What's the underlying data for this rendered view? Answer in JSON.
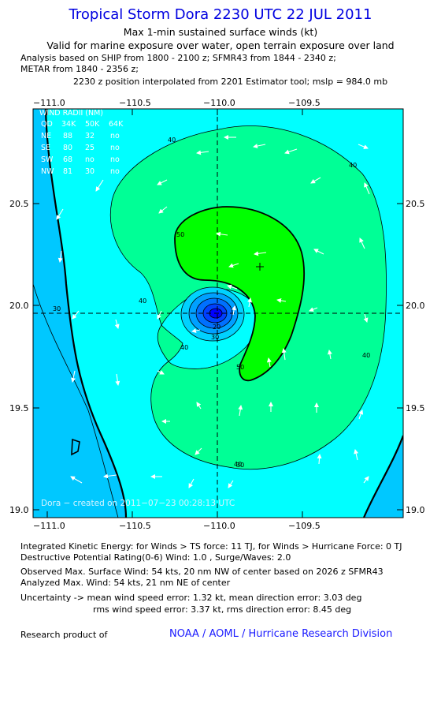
{
  "header": {
    "title": "Tropical Storm Dora 2230 UTC 22 JUL 2011",
    "subtitle": "Max 1-min sustained surface winds (kt)",
    "valid": "Valid for marine exposure over water, open terrain exposure over land",
    "analysis_1": "Analysis based on SHIP from 1800 - 2100 z; SFMR43 from 1844 - 2340 z;",
    "analysis_2": "METAR from 1840 - 2356 z;",
    "position": "2230 z position interpolated from 2201 Estimator tool; mslp = 984.0 mb"
  },
  "map": {
    "x_ticks": [
      "−111.0",
      "−110.5",
      "−110.0",
      "−109.5"
    ],
    "y_ticks": [
      "20.5",
      "20.0",
      "19.5",
      "19.0"
    ],
    "credit": "Dora − created on 2011−07−23 00:28:13 UTC",
    "contour_labels": [
      "40",
      "40",
      "50",
      "40",
      "30",
      "40",
      "30",
      "20",
      "50",
      "40",
      "40",
      "30"
    ],
    "wind_radii": {
      "title": "WIND RADII (NM)",
      "header": [
        "QD",
        "34K",
        "50K",
        "64K"
      ],
      "rows": [
        [
          "NE",
          "88",
          "32",
          "no"
        ],
        [
          "SE",
          "80",
          "25",
          "no"
        ],
        [
          "SW",
          "68",
          "no",
          "no"
        ],
        [
          "NW",
          "81",
          "30",
          "no"
        ]
      ]
    },
    "colors": {
      "cyan": "#00ffff",
      "light_blue": "#00c8ff",
      "sea_green": "#00ff96",
      "green": "#00ff00",
      "center_blue": "#0000ff"
    }
  },
  "footer": {
    "ike": "Integrated Kinetic Energy:  for Winds > TS force: 11 TJ,  for Winds > Hurricane Force: 0 TJ",
    "dpr": "Destructive Potential Rating(0-6)   Wind: 1.0 , Surge/Waves: 2.0",
    "observed": "Observed Max. Surface Wind: 54 kts, 20 nm NW of center based on 2026 z SFMR43",
    "analyzed": "Analyzed Max. Wind: 54 kts, 21 nm NE of center",
    "uncertainty_1": "Uncertainty -> mean wind speed error: 1.32 kt,   mean direction error: 3.03 deg",
    "uncertainty_2": "rms wind speed error: 3.37 kt,   rms direction error: 8.45 deg",
    "research": "Research product of",
    "noaa": "NOAA / AOML / Hurricane Research Division"
  }
}
